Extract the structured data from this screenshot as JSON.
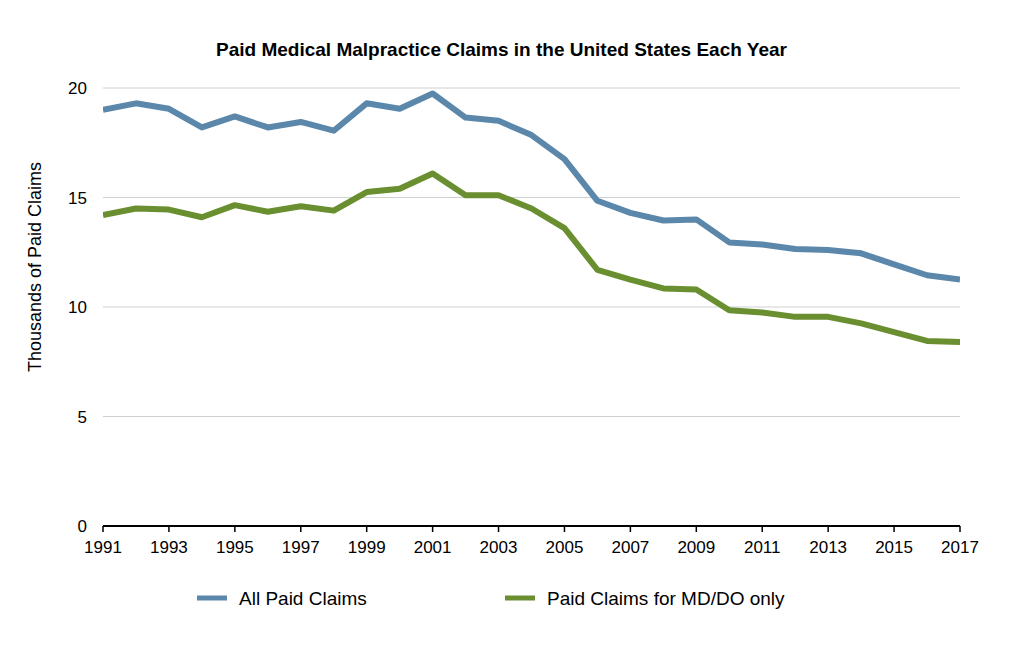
{
  "chart_data": {
    "type": "line",
    "title": "Paid Medical Malpractice Claims in the United States Each Year",
    "y_label": "Thousands of Paid Claims",
    "x": [
      1991,
      1992,
      1993,
      1994,
      1995,
      1996,
      1997,
      1998,
      1999,
      2000,
      2001,
      2002,
      2003,
      2004,
      2005,
      2006,
      2007,
      2008,
      2009,
      2010,
      2011,
      2012,
      2013,
      2014,
      2015,
      2016,
      2017
    ],
    "series": [
      {
        "name": "All Paid Claims",
        "color": "#5b87aa",
        "values": [
          19.0,
          19.3,
          19.05,
          18.2,
          18.7,
          18.2,
          18.45,
          18.05,
          19.3,
          19.05,
          19.75,
          18.65,
          18.5,
          17.85,
          16.75,
          14.85,
          14.3,
          13.95,
          14.0,
          12.95,
          12.85,
          12.65,
          12.6,
          12.45,
          11.95,
          11.45,
          11.25
        ]
      },
      {
        "name": "Paid Claims for MD/DO only",
        "color": "#6a8f30",
        "values": [
          14.2,
          14.5,
          14.45,
          14.1,
          14.65,
          14.35,
          14.6,
          14.4,
          15.25,
          15.4,
          16.1,
          15.1,
          15.1,
          14.5,
          13.6,
          11.7,
          11.25,
          10.85,
          10.8,
          9.85,
          9.75,
          9.55,
          9.55,
          9.25,
          8.85,
          8.45,
          8.4
        ]
      }
    ],
    "xlim": [
      1991,
      2017
    ],
    "xticks": [
      1991,
      1993,
      1995,
      1997,
      1999,
      2001,
      2003,
      2005,
      2007,
      2009,
      2011,
      2013,
      2015,
      2017
    ],
    "ylim": [
      0,
      20
    ],
    "yticks": [
      0,
      5,
      10,
      15,
      20
    ],
    "grid": true,
    "legend": "bottom"
  }
}
